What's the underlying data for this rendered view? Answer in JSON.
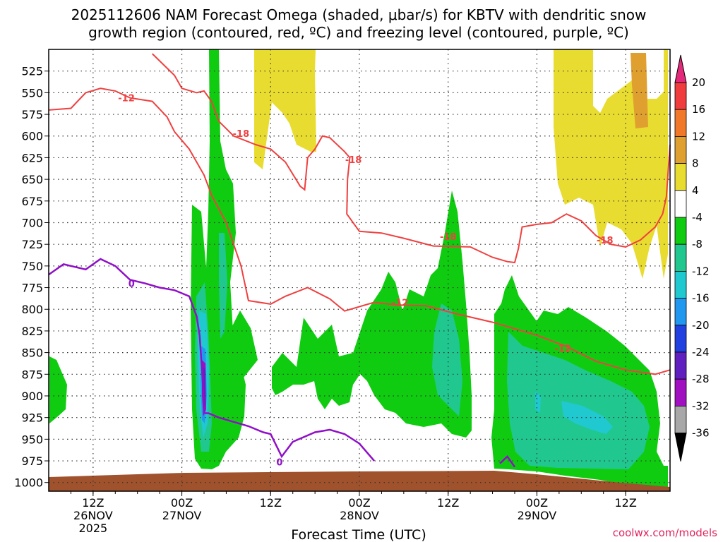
{
  "chart_data": {
    "type": "contour",
    "title_line1": "2025112606 NAM Forecast Omega (shaded, μbar/s) for KBTV with dendritic snow",
    "title_line2": "growth region (contoured, red, ºC) and freezing level (contoured, purple, ºC)",
    "xlabel": "Forecast Time (UTC)",
    "credit": "coolwx.com/models",
    "y_axis": {
      "unit": "hPa",
      "range": [
        500,
        1010
      ],
      "ticks": [
        "525",
        "550",
        "575",
        "600",
        "625",
        "650",
        "675",
        "700",
        "725",
        "750",
        "775",
        "800",
        "825",
        "850",
        "875",
        "900",
        "925",
        "950",
        "975",
        "1000"
      ]
    },
    "x_axis": {
      "range_hours": [
        0,
        84
      ],
      "ticks": [
        {
          "hour": 6,
          "label": "12Z",
          "day": "26NOV",
          "year": "2025"
        },
        {
          "hour": 18,
          "label": "00Z",
          "day": "27NOV",
          "year": ""
        },
        {
          "hour": 30,
          "label": "12Z",
          "day": "",
          "year": ""
        },
        {
          "hour": 42,
          "label": "00Z",
          "day": "28NOV",
          "year": ""
        },
        {
          "hour": 54,
          "label": "12Z",
          "day": "",
          "year": ""
        },
        {
          "hour": 66,
          "label": "00Z",
          "day": "29NOV",
          "year": ""
        },
        {
          "hour": 78,
          "label": "12Z",
          "day": "",
          "year": ""
        }
      ]
    },
    "colorbar": {
      "labels": [
        "20",
        "16",
        "12",
        "8",
        "4",
        "-4",
        "-8",
        "-12",
        "-16",
        "-20",
        "-24",
        "-28",
        "-32",
        "-36"
      ],
      "colors": [
        "#e4287a",
        "#f03c3c",
        "#f07828",
        "#e0a030",
        "#e8dc30",
        "#ffffff",
        "#10cc10",
        "#20c890",
        "#20c8d0",
        "#2098f0",
        "#2040e0",
        "#6020c0",
        "#a010c0",
        "#a8a8a8",
        "#000000"
      ]
    },
    "contours": {
      "red_label_dgz": [
        {
          "text": "-12",
          "hour": 10.5,
          "p": 556
        },
        {
          "text": "-18",
          "hour": 26.0,
          "p": 597
        },
        {
          "text": "-18",
          "hour": 41.2,
          "p": 627
        },
        {
          "text": "-18",
          "hour": 54.0,
          "p": 716
        },
        {
          "text": "-18",
          "hour": 75.2,
          "p": 720
        },
        {
          "text": "-12",
          "hour": 47.5,
          "p": 792
        },
        {
          "text": "-12",
          "hour": 69.5,
          "p": 845
        }
      ],
      "purple_label_freezing": [
        {
          "text": "0",
          "hour": 11.2,
          "p": 770
        },
        {
          "text": "0",
          "hour": 31.2,
          "p": 976
        }
      ],
      "red_upper_path": [
        [
          0,
          570
        ],
        [
          3,
          568
        ],
        [
          5,
          550
        ],
        [
          7,
          545
        ],
        [
          9,
          548
        ],
        [
          11,
          556
        ],
        [
          14,
          560
        ],
        [
          16,
          578
        ],
        [
          17,
          595
        ],
        [
          19,
          615
        ],
        [
          20,
          630
        ],
        [
          21,
          645
        ],
        [
          22,
          668
        ],
        [
          24,
          700
        ],
        [
          25,
          725
        ],
        [
          26,
          750
        ],
        [
          27,
          790
        ],
        [
          30,
          794
        ],
        [
          32,
          785
        ],
        [
          35,
          775
        ],
        [
          38,
          788
        ],
        [
          40,
          802
        ],
        [
          44,
          792
        ],
        [
          47,
          795
        ],
        [
          51,
          796
        ],
        [
          55,
          805
        ],
        [
          60,
          815
        ],
        [
          66,
          830
        ],
        [
          70,
          843
        ],
        [
          74,
          860
        ],
        [
          78,
          870
        ],
        [
          82,
          875
        ],
        [
          84,
          870
        ]
      ],
      "red_lower_path": [
        [
          14,
          505
        ],
        [
          17,
          530
        ],
        [
          18,
          545
        ],
        [
          20,
          550
        ],
        [
          21,
          548
        ],
        [
          22,
          560
        ],
        [
          23,
          583
        ],
        [
          25,
          600
        ],
        [
          28,
          610
        ],
        [
          30,
          615
        ],
        [
          32,
          630
        ],
        [
          34,
          658
        ],
        [
          34.6,
          662
        ],
        [
          35,
          625
        ],
        [
          36,
          615
        ],
        [
          37,
          600
        ],
        [
          38,
          602
        ],
        [
          40,
          618
        ],
        [
          40.7,
          625
        ],
        [
          40.4,
          650
        ],
        [
          40.3,
          690
        ],
        [
          42,
          710
        ],
        [
          45,
          712
        ],
        [
          48,
          718
        ],
        [
          52,
          727
        ],
        [
          57,
          728
        ],
        [
          60,
          740
        ],
        [
          62,
          745
        ],
        [
          63,
          746
        ],
        [
          63.5,
          730
        ],
        [
          64,
          705
        ],
        [
          66,
          702
        ],
        [
          68,
          700
        ],
        [
          70,
          690
        ],
        [
          72,
          698
        ],
        [
          74,
          715
        ],
        [
          76,
          725
        ],
        [
          78,
          728
        ],
        [
          80,
          720
        ],
        [
          82,
          705
        ],
        [
          83,
          690
        ],
        [
          83.5,
          670
        ],
        [
          84,
          610
        ]
      ],
      "purple_path": [
        [
          0,
          760
        ],
        [
          2,
          748
        ],
        [
          5,
          754
        ],
        [
          7,
          742
        ],
        [
          9,
          750
        ],
        [
          11,
          766
        ],
        [
          13,
          770
        ],
        [
          15,
          775
        ],
        [
          17,
          778
        ],
        [
          19,
          785
        ],
        [
          20,
          808
        ],
        [
          20.4,
          830
        ],
        [
          20.8,
          880
        ],
        [
          21.0,
          920
        ],
        [
          21.6,
          920
        ],
        [
          23,
          925
        ],
        [
          25,
          930
        ],
        [
          27,
          935
        ],
        [
          29,
          942
        ],
        [
          30,
          944
        ],
        [
          31.5,
          970
        ],
        [
          33,
          953
        ],
        [
          36,
          942
        ],
        [
          38,
          939
        ],
        [
          40,
          944
        ],
        [
          42,
          955
        ],
        [
          44,
          975
        ]
      ],
      "purple_path_2": [
        [
          61,
          978
        ],
        [
          62,
          970
        ],
        [
          63,
          982
        ]
      ]
    }
  }
}
